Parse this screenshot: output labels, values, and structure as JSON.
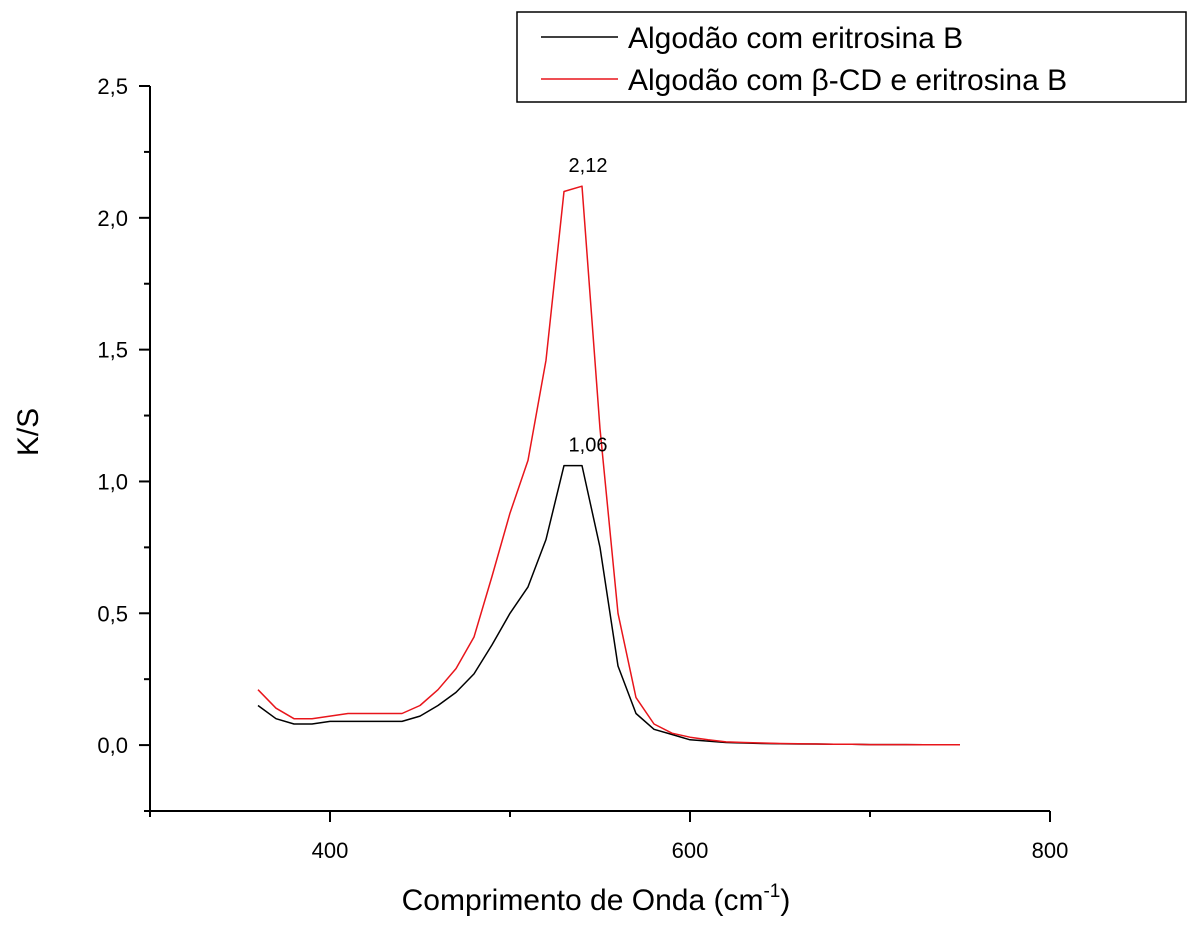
{
  "chart_data": {
    "type": "line",
    "xlabel_main": "Comprimento de Onda (cm",
    "xlabel_sup": "-1",
    "xlabel_close": ")",
    "ylabel": "K/S",
    "xlim": [
      300,
      800
    ],
    "ylim": [
      -0.25,
      2.5
    ],
    "x_ticks": [
      {
        "value": 400,
        "label": "400"
      },
      {
        "value": 600,
        "label": "600"
      },
      {
        "value": 800,
        "label": "800"
      }
    ],
    "y_ticks": [
      {
        "value": 0.0,
        "label": "0,0"
      },
      {
        "value": 0.5,
        "label": "0,5"
      },
      {
        "value": 1.0,
        "label": "1,0"
      },
      {
        "value": 1.5,
        "label": "1,5"
      },
      {
        "value": 2.0,
        "label": "2,0"
      },
      {
        "value": 2.5,
        "label": "2,5"
      }
    ],
    "legend_position": "top-right",
    "grid": false,
    "series": [
      {
        "name": "Algodão com eritrosina B",
        "color": "#000000",
        "x": [
          360,
          370,
          380,
          390,
          400,
          410,
          420,
          430,
          440,
          450,
          460,
          470,
          480,
          490,
          500,
          510,
          520,
          530,
          540,
          550,
          560,
          570,
          580,
          590,
          600,
          610,
          620,
          630,
          640,
          650,
          660,
          670,
          680,
          690,
          700,
          710,
          720,
          730,
          740,
          750
        ],
        "y": [
          0.15,
          0.1,
          0.08,
          0.08,
          0.09,
          0.09,
          0.09,
          0.09,
          0.09,
          0.11,
          0.15,
          0.2,
          0.27,
          0.38,
          0.5,
          0.6,
          0.78,
          1.06,
          1.06,
          0.75,
          0.3,
          0.12,
          0.06,
          0.04,
          0.02,
          0.015,
          0.01,
          0.008,
          0.006,
          0.005,
          0.004,
          0.004,
          0.003,
          0.003,
          0.002,
          0.002,
          0.002,
          0.001,
          0.001,
          0.001
        ]
      },
      {
        "name": "Algodão com β-CD e eritrosina B",
        "color": "#e8151b",
        "x": [
          360,
          370,
          380,
          390,
          400,
          410,
          420,
          430,
          440,
          450,
          460,
          470,
          480,
          490,
          500,
          510,
          520,
          530,
          540,
          550,
          560,
          570,
          580,
          590,
          600,
          610,
          620,
          630,
          640,
          650,
          660,
          670,
          680,
          690,
          700,
          710,
          720,
          730,
          740,
          750
        ],
        "y": [
          0.21,
          0.14,
          0.1,
          0.1,
          0.11,
          0.12,
          0.12,
          0.12,
          0.12,
          0.15,
          0.21,
          0.29,
          0.41,
          0.64,
          0.88,
          1.08,
          1.46,
          2.1,
          2.12,
          1.2,
          0.5,
          0.18,
          0.08,
          0.045,
          0.03,
          0.02,
          0.012,
          0.01,
          0.008,
          0.006,
          0.005,
          0.004,
          0.003,
          0.003,
          0.002,
          0.002,
          0.002,
          0.001,
          0.001,
          0.001
        ]
      }
    ],
    "annotations": [
      {
        "text": "2,12",
        "x": 540,
        "y": 2.12,
        "series": 1
      },
      {
        "text": "1,06",
        "x": 540,
        "y": 1.06,
        "series": 0
      }
    ]
  }
}
